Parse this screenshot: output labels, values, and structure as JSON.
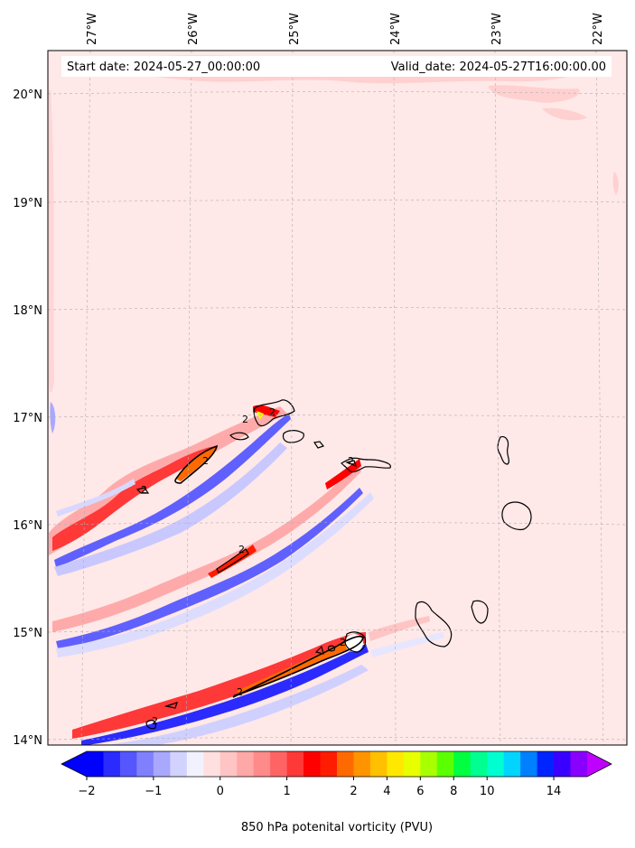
{
  "header": {
    "start_date": "Start date: 2024-05-27_00:00:00",
    "valid_date": "Valid_date: 2024-05-27T16:00:00.00"
  },
  "map": {
    "background_color": "#ffe8e8",
    "longitude_labels": [
      "27°W",
      "26°W",
      "25°W",
      "24°W",
      "23°W",
      "22°W"
    ],
    "latitude_labels": [
      "20°N",
      "19°N",
      "18°N",
      "17°N",
      "16°N",
      "15°N",
      "14°N"
    ]
  },
  "colorbar": {
    "label": "850 hPa potenital vorticity (PVU)",
    "tick_labels": [
      "−2",
      "−1",
      "0",
      "1",
      "2",
      "4",
      "6",
      "8",
      "10",
      "14"
    ],
    "colors": [
      "#0000ff",
      "#2b2bff",
      "#5656ff",
      "#8080ff",
      "#a8a8ff",
      "#d2d2ff",
      "#f2f2ff",
      "#ffe0e0",
      "#ffc4c4",
      "#ffa8a8",
      "#ff8a8a",
      "#ff6464",
      "#ff3838",
      "#ff0000",
      "#ff1c00",
      "#ff6a00",
      "#ff9400",
      "#ffc000",
      "#ffe800",
      "#e8ff00",
      "#a8ff00",
      "#5aff00",
      "#00ff40",
      "#00ff90",
      "#00ffd0",
      "#00d4ff",
      "#0080ff",
      "#0024ff",
      "#3a00ff",
      "#8a00ff"
    ],
    "under_color": "#0000ff",
    "over_color": "#c000ff"
  },
  "contour_labels": [
    "2",
    "2",
    "2",
    "2",
    "2",
    "2",
    "2",
    "2",
    "2"
  ]
}
